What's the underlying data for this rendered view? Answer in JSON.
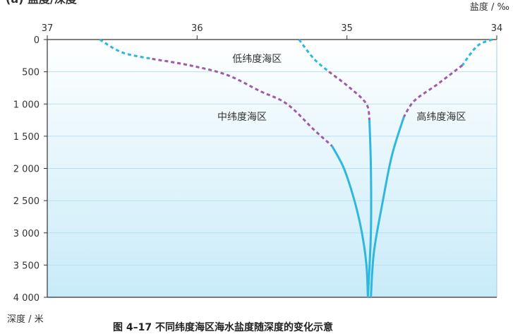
{
  "caption": "图 4–17    不同纬度海区海水盐度随深度的变化示意",
  "top_title_fragment": "(a) 盐度/深度",
  "chart_data": {
    "type": "line",
    "title": "不同纬度海区海水盐度随深度的变化示意",
    "xlabel": "盐度 / ‰",
    "ylabel": "深度 / 米",
    "x_ticks": [
      37,
      36,
      35,
      34
    ],
    "y_ticks": [
      0,
      500,
      1000,
      1500,
      2000,
      2500,
      3000,
      3500,
      4000
    ],
    "y_tick_labels": [
      "0",
      "500",
      "1 000",
      "1 500",
      "2 000",
      "2 500",
      "3 000",
      "3 500",
      "4 000"
    ],
    "xlim": [
      37,
      34
    ],
    "ylim": [
      0,
      4000
    ],
    "x_reversed": true,
    "y_reversed": true,
    "grid": true,
    "colors": {
      "solid": "#2fb7df",
      "dash_blue": "#2fb7df",
      "dash_purple": "#a05aa8",
      "grid": "#b9dff0",
      "bg_top": "#ffffff",
      "bg_bottom": "#c8ebf9"
    },
    "series": [
      {
        "name": "低纬度海区",
        "points": [
          {
            "x": 35.32,
            "y": 0,
            "style": "dashed-blue"
          },
          {
            "x": 35.22,
            "y": 300,
            "style": "dashed-blue"
          },
          {
            "x": 35.12,
            "y": 500,
            "style": "dashed-purple"
          },
          {
            "x": 34.98,
            "y": 750,
            "style": "dashed-purple"
          },
          {
            "x": 34.87,
            "y": 1000,
            "style": "dashed-purple"
          },
          {
            "x": 34.85,
            "y": 1250,
            "style": "solid"
          },
          {
            "x": 34.84,
            "y": 2000,
            "style": "solid"
          },
          {
            "x": 34.84,
            "y": 3000,
            "style": "solid"
          },
          {
            "x": 34.86,
            "y": 4000,
            "style": "solid"
          }
        ]
      },
      {
        "name": "中纬度海区",
        "points": [
          {
            "x": 36.65,
            "y": 0,
            "style": "dashed-blue"
          },
          {
            "x": 36.5,
            "y": 200,
            "style": "dashed-blue"
          },
          {
            "x": 36.3,
            "y": 300,
            "style": "dashed-purple"
          },
          {
            "x": 36.05,
            "y": 400,
            "style": "dashed-purple"
          },
          {
            "x": 35.8,
            "y": 550,
            "style": "dashed-purple"
          },
          {
            "x": 35.58,
            "y": 800,
            "style": "dashed-purple"
          },
          {
            "x": 35.4,
            "y": 1000,
            "style": "dashed-purple"
          },
          {
            "x": 35.22,
            "y": 1400,
            "style": "dashed-purple"
          },
          {
            "x": 35.1,
            "y": 1650,
            "style": "solid"
          },
          {
            "x": 35.02,
            "y": 2000,
            "style": "solid"
          },
          {
            "x": 34.95,
            "y": 2500,
            "style": "solid"
          },
          {
            "x": 34.9,
            "y": 3000,
            "style": "solid"
          },
          {
            "x": 34.87,
            "y": 3500,
            "style": "solid"
          },
          {
            "x": 34.86,
            "y": 4000,
            "style": "solid"
          }
        ]
      },
      {
        "name": "高纬度海区",
        "points": [
          {
            "x": 34.03,
            "y": 0,
            "style": "dashed-blue"
          },
          {
            "x": 34.13,
            "y": 100,
            "style": "dashed-blue"
          },
          {
            "x": 34.23,
            "y": 400,
            "style": "dashed-purple"
          },
          {
            "x": 34.4,
            "y": 700,
            "style": "dashed-purple"
          },
          {
            "x": 34.55,
            "y": 950,
            "style": "dashed-purple"
          },
          {
            "x": 34.62,
            "y": 1200,
            "style": "solid"
          },
          {
            "x": 34.7,
            "y": 1800,
            "style": "solid"
          },
          {
            "x": 34.76,
            "y": 2500,
            "style": "solid"
          },
          {
            "x": 34.82,
            "y": 3300,
            "style": "solid"
          },
          {
            "x": 34.84,
            "y": 4000,
            "style": "solid"
          }
        ]
      }
    ],
    "annotations": [
      {
        "text": "低纬度海区",
        "x": 35.6,
        "y": 350
      },
      {
        "text": "中纬度海区",
        "x": 35.7,
        "y": 1250
      },
      {
        "text": "高纬度海区",
        "x": 34.37,
        "y": 1250
      }
    ]
  }
}
